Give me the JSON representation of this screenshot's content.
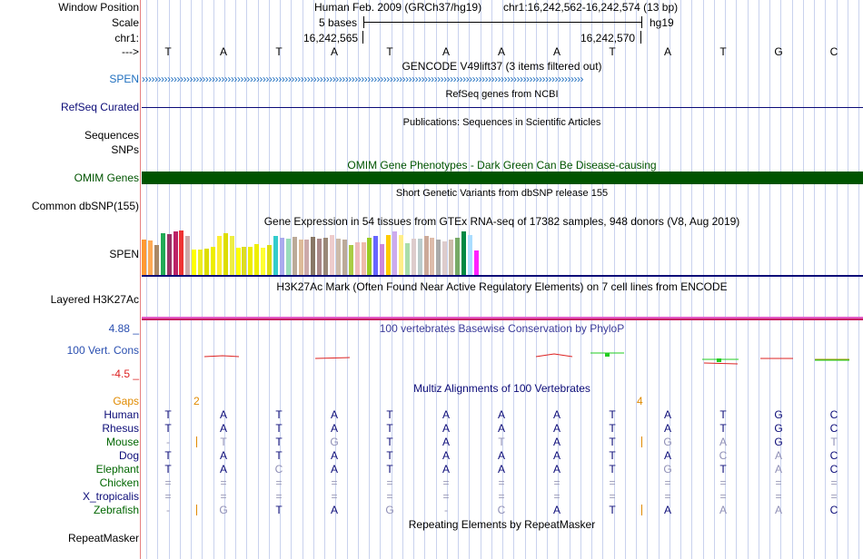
{
  "header": {
    "labels": {
      "window_position": "Window Position",
      "scale": "Scale",
      "chrom": "chr1:",
      "strand_arrow": "--->"
    },
    "assembly": "Human Feb. 2009 (GRCh37/hg19)",
    "position": "chr1:16,242,562-16,242,574 (13 bp)",
    "scale_text": "5 bases",
    "scale_db": "hg19",
    "coord_left": "16,242,565",
    "coord_right": "16,242,570",
    "sequence": [
      "T",
      "A",
      "T",
      "A",
      "T",
      "A",
      "A",
      "A",
      "T",
      "A",
      "T",
      "G",
      "C"
    ]
  },
  "tracks": {
    "gencode": {
      "title": "GENCODE V49lift37 (3 items filtered out)",
      "item_label": "SPEN",
      "color": "#1f6fbf",
      "strand_chevrons": "›››››››››››››››››››››››››››››››››››››››››››››››››››››››››››››››››››››››››››››››››››››››››››››››››››››››››››››››››››››››››››››››››››››››››››"
    },
    "refseq": {
      "title": "RefSeq genes from NCBI",
      "label": "RefSeq Curated",
      "color": "#0c0c78"
    },
    "publications": {
      "title": "Publications: Sequences in Scientific Articles",
      "label_line1": "Sequences",
      "label_line2": "SNPs"
    },
    "omim": {
      "title": "OMIM Gene Phenotypes - Dark Green Can Be Disease-causing",
      "label": "OMIM Genes",
      "color": "#005400"
    },
    "dbsnp": {
      "title": "Short Genetic Variants from dbSNP release 155",
      "label": "Common dbSNP(155)"
    },
    "gtex": {
      "title": "Gene Expression in 54 tissues from GTEx RNA-seq of 17382 samples, 948 donors (V8, Aug 2019)",
      "label": "SPEN",
      "bar_heights": [
        0.78,
        0.75,
        0.65,
        0.92,
        0.9,
        0.95,
        0.98,
        0.85,
        0.55,
        0.55,
        0.58,
        0.62,
        0.85,
        0.92,
        0.86,
        0.6,
        0.62,
        0.62,
        0.68,
        0.6,
        0.65,
        0.85,
        0.82,
        0.8,
        0.84,
        0.78,
        0.78,
        0.84,
        0.8,
        0.82,
        0.88,
        0.8,
        0.78,
        0.66,
        0.72,
        0.72,
        0.82,
        0.85,
        0.68,
        0.88,
        0.95,
        0.88,
        0.7,
        0.8,
        0.8,
        0.85,
        0.82,
        0.78,
        0.74,
        0.78,
        0.82,
        0.96,
        0.88,
        0.54
      ],
      "bar_colors": [
        "#ff9933",
        "#ffaa55",
        "#aa8866",
        "#22aa55",
        "#993366",
        "#bb2266",
        "#ee3333",
        "#ccaaaa",
        "#ffff00",
        "#eeee22",
        "#dddd00",
        "#eeee00",
        "#ffee33",
        "#dddd00",
        "#eeee44",
        "#ffff00",
        "#dddd22",
        "#eeee00",
        "#eeee00",
        "#ffff33",
        "#dddd11",
        "#33cccc",
        "#aaaaee",
        "#99ddbb",
        "#bbaa99",
        "#ddbb99",
        "#ccaaaa",
        "#887766",
        "#aa8888",
        "#998877",
        "#eecccc",
        "#ccbbaa",
        "#bbaa99",
        "#aacc44",
        "#eebbbb",
        "#eebbaa",
        "#99cc22",
        "#6666ff",
        "#cc88dd",
        "#ffcc00",
        "#ccaaee",
        "#ffee88",
        "#aaddaa",
        "#ddcccc",
        "#bbcccc",
        "#ccaa99",
        "#ddbbaa",
        "#aaaaaa",
        "#ddcccc",
        "#ccbbaa",
        "#77aa66",
        "#008844",
        "#aaddff",
        "#ff22ff"
      ]
    },
    "h3k27ac": {
      "title": "H3K27Ac Mark (Often Found Near Active Regulatory Elements) on 7 cell lines from ENCODE",
      "label": "Layered H3K27Ac"
    },
    "phylop": {
      "title": "100 vertebrates Basewise Conservation by PhyloP",
      "label": "100 Vert. Cons",
      "ymax": "4.88 _",
      "ymin": "-4.5 _",
      "pos_color": "#2a4fb0",
      "neg_color": "#dd2222"
    },
    "multiz": {
      "title": "Multiz Alignments of 100 Vertebrates",
      "gaps_label": "Gaps",
      "gaps": [
        "2",
        "4"
      ],
      "gaps_color": "#e08a00",
      "species_color": "#0c0c78",
      "species_alt_color": "#006600",
      "species": [
        {
          "name": "Human",
          "bases": [
            "T",
            "A",
            "T",
            "A",
            "T",
            "A",
            "A",
            "A",
            "T",
            "A",
            "T",
            "G",
            "C"
          ]
        },
        {
          "name": "Rhesus",
          "bases": [
            "T",
            "A",
            "T",
            "A",
            "T",
            "A",
            "A",
            "A",
            "T",
            "A",
            "T",
            "G",
            "C"
          ]
        },
        {
          "name": "Mouse",
          "bases": [
            "-",
            "T",
            "T",
            "G",
            "T",
            "A",
            "T",
            "A",
            "T",
            "G",
            "A",
            "G",
            "T"
          ]
        },
        {
          "name": "Dog",
          "bases": [
            "T",
            "A",
            "T",
            "A",
            "T",
            "A",
            "A",
            "A",
            "T",
            "A",
            "C",
            "A",
            "C"
          ]
        },
        {
          "name": "Elephant",
          "bases": [
            "T",
            "A",
            "C",
            "A",
            "T",
            "A",
            "A",
            "A",
            "T",
            "G",
            "T",
            "A",
            "C"
          ]
        },
        {
          "name": "Chicken",
          "bases": [
            "=",
            "=",
            "=",
            "=",
            "=",
            "=",
            "=",
            "=",
            "=",
            "=",
            "=",
            "=",
            "="
          ]
        },
        {
          "name": "X_tropicalis",
          "bases": [
            "=",
            "=",
            "=",
            "=",
            "=",
            "=",
            "=",
            "=",
            "=",
            "=",
            "=",
            "=",
            "="
          ]
        },
        {
          "name": "Zebrafish",
          "bases": [
            "-",
            "G",
            "T",
            "A",
            "G",
            "-",
            "C",
            "A",
            "T",
            "A",
            "A",
            "A",
            "C"
          ]
        }
      ]
    },
    "repeatmasker": {
      "title": "Repeating Elements by RepeatMasker",
      "label": "RepeatMasker"
    }
  }
}
